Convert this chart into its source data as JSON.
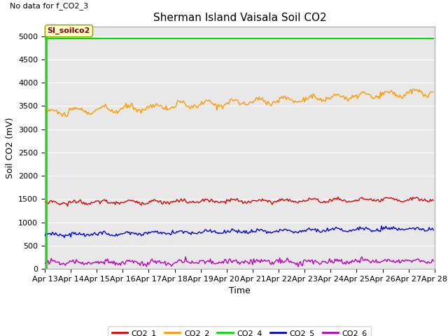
{
  "title": "Sherman Island Vaisala Soil CO2",
  "no_data_text": "No data for f_CO2_3",
  "ylabel": "Soil CO2 (mV)",
  "xlabel": "Time",
  "annotation": "SI_soilco2",
  "ylim": [
    0,
    5200
  ],
  "yticks": [
    0,
    500,
    1000,
    1500,
    2000,
    2500,
    3000,
    3500,
    4000,
    4500,
    5000
  ],
  "xstart": 13,
  "xend": 28,
  "xtick_labels": [
    "Apr 13",
    "Apr 14",
    "Apr 15",
    "Apr 16",
    "Apr 17",
    "Apr 18",
    "Apr 19",
    "Apr 20",
    "Apr 21",
    "Apr 22",
    "Apr 23",
    "Apr 24",
    "Apr 25",
    "Apr 26",
    "Apr 27",
    "Apr 28"
  ],
  "colors": {
    "CO2_1": "#dd0000",
    "CO2_2": "#ff9900",
    "CO2_4": "#00dd00",
    "CO2_5": "#0000dd",
    "CO2_6": "#bb00bb"
  },
  "vline_color": "#00ee00",
  "annotation_box_facecolor": "#ffffcc",
  "annotation_box_edgecolor": "#999900",
  "annotation_text_color": "#880000",
  "background_color": "#e8e8e8",
  "grid_color": "#ffffff",
  "title_fontsize": 11,
  "label_fontsize": 9,
  "tick_fontsize": 8,
  "legend_fontsize": 8
}
